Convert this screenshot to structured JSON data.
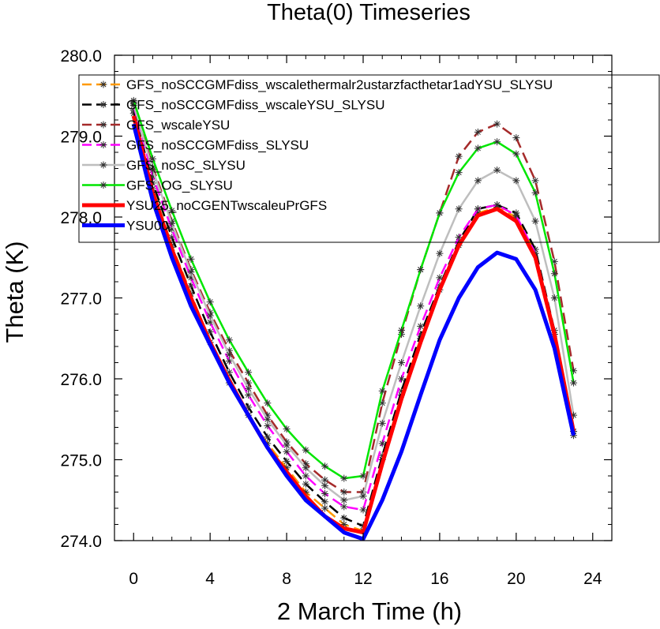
{
  "chart_data": {
    "type": "line",
    "title": "Theta(0) Timeseries",
    "xlabel": "2 March Time (h)",
    "ylabel": "Theta (K)",
    "xlim": [
      -1,
      25
    ],
    "ylim": [
      274.0,
      280.0
    ],
    "xticks": [
      0,
      4,
      8,
      12,
      16,
      20,
      24
    ],
    "yticks": [
      274.0,
      275.0,
      276.0,
      277.0,
      278.0,
      279.0,
      280.0
    ],
    "xtick_labels": [
      "0",
      "4",
      "8",
      "12",
      "16",
      "20",
      "24"
    ],
    "ytick_labels": [
      "274.0",
      "275.0",
      "276.0",
      "277.0",
      "278.0",
      "279.0",
      "280.0"
    ],
    "legend_position": "top, inside plot",
    "x": [
      0,
      1,
      2,
      3,
      4,
      5,
      6,
      7,
      8,
      9,
      10,
      11,
      12,
      13,
      14,
      15,
      16,
      17,
      18,
      19,
      20,
      21,
      22,
      23
    ],
    "series": [
      {
        "name": "GFS_noSCCGMFdiss_wscalethermalr2ustarzfacthetar1adYSU_SLYSU",
        "color": "#ff9900",
        "dash": "dashed",
        "width": 2.5,
        "markers": true,
        "values": [
          279.28,
          278.35,
          277.65,
          277.05,
          276.45,
          275.95,
          275.55,
          275.2,
          274.9,
          274.6,
          274.4,
          274.2,
          274.12,
          275.0,
          275.8,
          276.5,
          277.1,
          277.65,
          278.05,
          278.12,
          278.0,
          277.55,
          276.55,
          275.3
        ]
      },
      {
        "name": "GFS_noSCCGMFdiss_wscaleYSU_SLYSU",
        "color": "#000000",
        "dash": "dashed",
        "width": 2.5,
        "markers": true,
        "values": [
          279.32,
          278.42,
          277.75,
          277.15,
          276.58,
          276.08,
          275.65,
          275.28,
          274.98,
          274.7,
          274.48,
          274.28,
          274.18,
          275.05,
          275.85,
          276.55,
          277.15,
          277.7,
          278.1,
          278.15,
          278.05,
          277.6,
          276.6,
          275.35
        ]
      },
      {
        "name": "GFS_wscaleYSU",
        "color": "#a52a2a",
        "dash": "dashed",
        "width": 2.5,
        "markers": true,
        "values": [
          279.42,
          278.62,
          277.95,
          277.35,
          276.82,
          276.35,
          275.95,
          275.55,
          275.22,
          274.95,
          274.75,
          274.6,
          274.6,
          275.7,
          276.55,
          277.35,
          278.05,
          278.75,
          279.05,
          279.15,
          278.98,
          278.45,
          277.45,
          276.1
        ]
      },
      {
        "name": "GFS_noSCCGMFdiss_SLYSU",
        "color": "#ff00ff",
        "dash": "dashed",
        "width": 2.5,
        "markers": true,
        "values": [
          279.38,
          278.5,
          277.85,
          277.25,
          276.7,
          276.22,
          275.8,
          275.42,
          275.1,
          274.8,
          274.58,
          274.42,
          274.38,
          275.2,
          276.0,
          276.65,
          277.25,
          277.75,
          278.1,
          278.15,
          278.02,
          277.55,
          276.55,
          275.35
        ]
      },
      {
        "name": "GFS_noSC_SLYSU",
        "color": "#bebebe",
        "dash": "solid",
        "width": 2.5,
        "markers": true,
        "values": [
          279.4,
          278.58,
          277.92,
          277.32,
          276.78,
          276.3,
          275.88,
          275.5,
          275.18,
          274.9,
          274.68,
          274.5,
          274.55,
          275.45,
          276.2,
          276.9,
          277.55,
          278.1,
          278.45,
          278.58,
          278.45,
          277.95,
          277.0,
          275.55
        ]
      },
      {
        "name": "GFS_OG_SLYSU",
        "color": "#00e600",
        "dash": "solid",
        "width": 2.5,
        "markers": true,
        "values": [
          279.44,
          278.72,
          278.08,
          277.48,
          276.95,
          276.48,
          276.08,
          275.7,
          275.38,
          275.12,
          274.92,
          274.77,
          274.8,
          275.85,
          276.6,
          277.35,
          278.05,
          278.55,
          278.85,
          278.93,
          278.78,
          278.3,
          277.3,
          275.95
        ]
      },
      {
        "name": "YSU25_noCGENTwscaleuPrGFS",
        "color": "#ff0000",
        "dash": "solid",
        "width": 5,
        "markers": false,
        "values": [
          279.25,
          278.3,
          277.6,
          277.0,
          276.45,
          275.98,
          275.55,
          275.15,
          274.85,
          274.55,
          274.3,
          274.15,
          274.1,
          274.95,
          275.75,
          276.45,
          277.1,
          277.65,
          278.02,
          278.1,
          277.95,
          277.5,
          276.55,
          275.35
        ]
      },
      {
        "name": "YSU00",
        "color": "#0000ff",
        "dash": "solid",
        "width": 5,
        "markers": false,
        "values": [
          279.15,
          278.2,
          277.5,
          276.9,
          276.42,
          275.95,
          275.55,
          275.15,
          274.8,
          274.5,
          274.3,
          274.1,
          274.02,
          274.5,
          275.1,
          275.8,
          276.48,
          277.0,
          277.38,
          277.56,
          277.48,
          277.1,
          276.38,
          275.3
        ]
      }
    ]
  }
}
